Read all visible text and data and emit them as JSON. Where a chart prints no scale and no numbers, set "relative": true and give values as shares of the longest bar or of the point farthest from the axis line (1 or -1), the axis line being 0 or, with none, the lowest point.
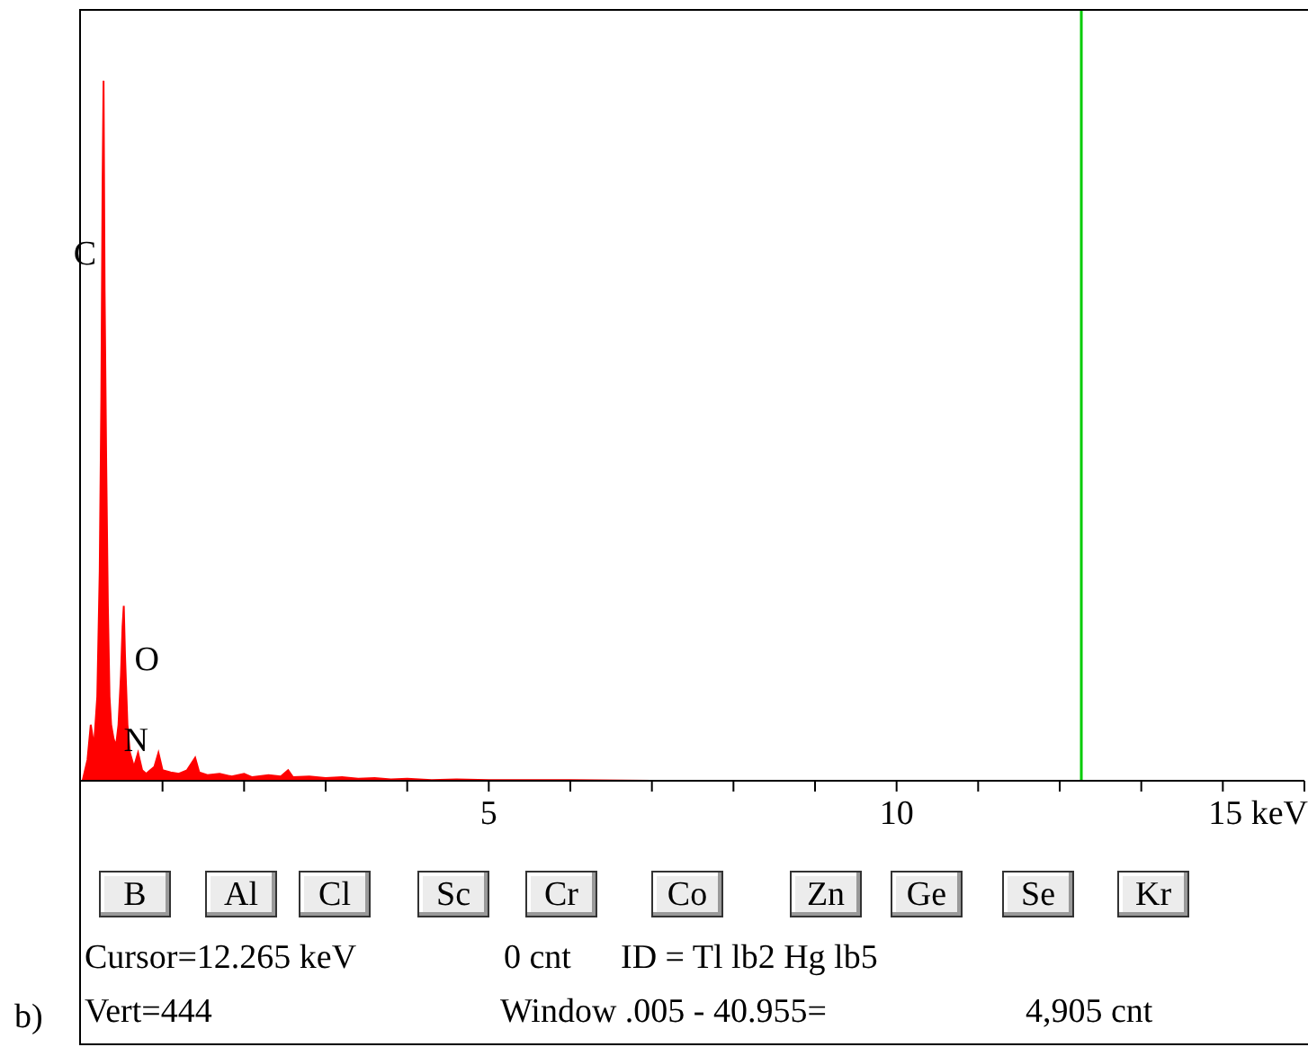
{
  "chart_data": {
    "type": "area",
    "relative": true,
    "color": "#ff0000",
    "x": [
      0.02,
      0.08,
      0.12,
      0.16,
      0.2,
      0.23,
      0.25,
      0.265,
      0.277,
      0.29,
      0.31,
      0.33,
      0.35,
      0.37,
      0.4,
      0.43,
      0.46,
      0.49,
      0.51,
      0.525,
      0.54,
      0.57,
      0.6,
      0.65,
      0.7,
      0.75,
      0.8,
      0.85,
      0.9,
      0.95,
      1.0,
      1.1,
      1.2,
      1.3,
      1.4,
      1.45,
      1.55,
      1.7,
      1.85,
      2.0,
      2.1,
      2.3,
      2.45,
      2.54,
      2.6,
      2.8,
      3.0,
      3.2,
      3.4,
      3.6,
      3.8,
      4.0,
      4.3,
      4.6,
      5.0,
      5.5,
      6.0,
      7.0,
      8.0,
      10,
      12,
      15
    ],
    "values": [
      0,
      0.03,
      0.08,
      0.05,
      0.12,
      0.3,
      0.55,
      0.85,
      1,
      0.7,
      0.45,
      0.25,
      0.12,
      0.08,
      0.06,
      0.05,
      0.08,
      0.15,
      0.22,
      0.25,
      0.18,
      0.08,
      0.04,
      0.02,
      0.04,
      0.015,
      0.01,
      0.015,
      0.02,
      0.04,
      0.015,
      0.012,
      0.01,
      0.015,
      0.033,
      0.012,
      0.008,
      0.01,
      0.006,
      0.01,
      0.005,
      0.008,
      0.006,
      0.015,
      0.005,
      0.006,
      0.004,
      0.005,
      0.003,
      0.004,
      0.002,
      0.003,
      0.001,
      0.002,
      0.001,
      0.001,
      0.001,
      0,
      0,
      0,
      0,
      0
    ],
    "xlim": [
      0,
      15
    ],
    "xticks": [
      {
        "value": 1,
        "label": null
      },
      {
        "value": 2,
        "label": null
      },
      {
        "value": 3,
        "label": null
      },
      {
        "value": 4,
        "label": null
      },
      5,
      {
        "value": 6,
        "label": null
      },
      {
        "value": 7,
        "label": null
      },
      {
        "value": 8,
        "label": null
      },
      {
        "value": 9,
        "label": null
      },
      10,
      {
        "value": 11,
        "label": null
      },
      {
        "value": 12,
        "label": null
      },
      {
        "value": 13,
        "label": null
      },
      {
        "value": 14,
        "label": null
      },
      {
        "value": 15,
        "label": "15 keV"
      }
    ],
    "ref_lines": [
      {
        "axis": "x",
        "value": 12.265,
        "color": "#00cc00"
      }
    ],
    "annotations": [
      {
        "text": "C",
        "x": 0.277,
        "y": 0.755
      },
      {
        "text": "O",
        "x": 0.525,
        "y": 0.175
      },
      {
        "text": "N",
        "x": 0.392,
        "y": 0.06
      },
      "b)",
      "B",
      "Al",
      "Cl",
      "Sc",
      "Cr",
      "Co",
      "Zn",
      "Ge",
      "Se",
      "Kr",
      "Cursor=12.265 keV",
      "0 cnt",
      "ID = Tl lb2 Hg lb5",
      "Vert=444",
      "Window .005 - 40.955=",
      "4,905 cnt"
    ]
  }
}
